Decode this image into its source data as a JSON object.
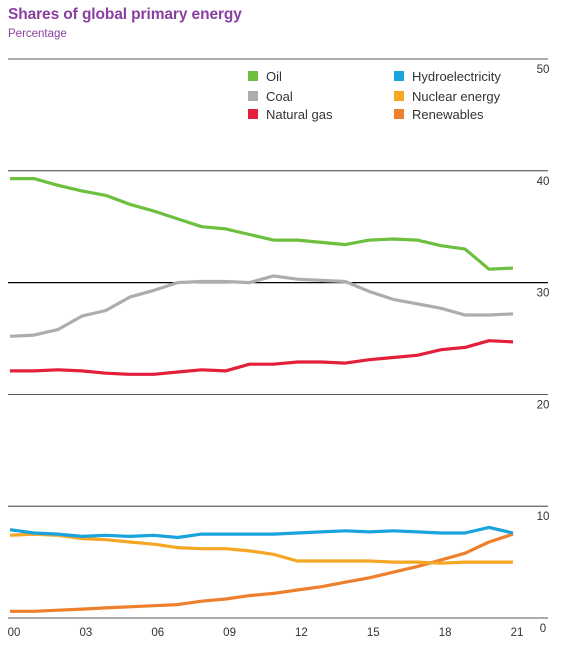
{
  "header": {
    "title": "Shares of global primary energy",
    "subtitle": "Percentage"
  },
  "chart_data": {
    "type": "line",
    "title": "Shares of global primary energy",
    "subtitle": "Percentage",
    "xlabel": "",
    "ylabel": "",
    "x": [
      2000,
      2001,
      2002,
      2003,
      2004,
      2005,
      2006,
      2007,
      2008,
      2009,
      2010,
      2011,
      2012,
      2013,
      2014,
      2015,
      2016,
      2017,
      2018,
      2019,
      2020,
      2021
    ],
    "x_tick_values": [
      2000,
      2003,
      2006,
      2009,
      2012,
      2015,
      2018,
      2021
    ],
    "x_tick_labels": [
      "00",
      "03",
      "06",
      "09",
      "12",
      "15",
      "18",
      "21"
    ],
    "ylim": [
      0,
      50
    ],
    "y_ticks": [
      0,
      10,
      20,
      30,
      40,
      50
    ],
    "y_axis_position": "right",
    "grid": "horizontal",
    "legend_position": "top-right",
    "series": [
      {
        "name": "Oil",
        "color": "#6cbf3f",
        "values": [
          39.3,
          39.3,
          38.7,
          38.2,
          37.8,
          37.0,
          36.4,
          35.7,
          35.0,
          34.8,
          34.3,
          33.8,
          33.8,
          33.6,
          33.4,
          33.8,
          33.9,
          33.8,
          33.3,
          33.0,
          31.2,
          31.3
        ]
      },
      {
        "name": "Coal",
        "color": "#aeacb0",
        "values": [
          25.2,
          25.3,
          25.8,
          27.0,
          27.5,
          28.7,
          29.3,
          30.0,
          30.1,
          30.1,
          30.0,
          30.6,
          30.3,
          30.2,
          30.1,
          29.2,
          28.5,
          28.1,
          27.7,
          27.1,
          27.1,
          27.2
        ]
      },
      {
        "name": "Natural gas",
        "color": "#e31f3c",
        "values": [
          22.1,
          22.1,
          22.2,
          22.1,
          21.9,
          21.8,
          21.8,
          22.0,
          22.2,
          22.1,
          22.7,
          22.7,
          22.9,
          22.9,
          22.8,
          23.1,
          23.3,
          23.5,
          24.0,
          24.2,
          24.8,
          24.7
        ]
      },
      {
        "name": "Hydroelectricity",
        "color": "#1aa3dd",
        "values": [
          7.9,
          7.6,
          7.5,
          7.3,
          7.4,
          7.3,
          7.4,
          7.2,
          7.5,
          7.5,
          7.5,
          7.5,
          7.6,
          7.7,
          7.8,
          7.7,
          7.8,
          7.7,
          7.6,
          7.6,
          8.1,
          7.6
        ]
      },
      {
        "name": "Nuclear energy",
        "color": "#f5a623",
        "values": [
          7.4,
          7.5,
          7.4,
          7.1,
          7.0,
          6.8,
          6.6,
          6.3,
          6.2,
          6.2,
          6.0,
          5.7,
          5.1,
          5.1,
          5.1,
          5.1,
          5.0,
          5.0,
          4.9,
          5.0,
          5.0,
          5.0
        ]
      },
      {
        "name": "Renewables",
        "color": "#ee7f2d",
        "values": [
          0.6,
          0.6,
          0.7,
          0.8,
          0.9,
          1.0,
          1.1,
          1.2,
          1.5,
          1.7,
          2.0,
          2.2,
          2.5,
          2.8,
          3.2,
          3.6,
          4.1,
          4.6,
          5.2,
          5.8,
          6.8,
          7.5
        ]
      }
    ]
  }
}
